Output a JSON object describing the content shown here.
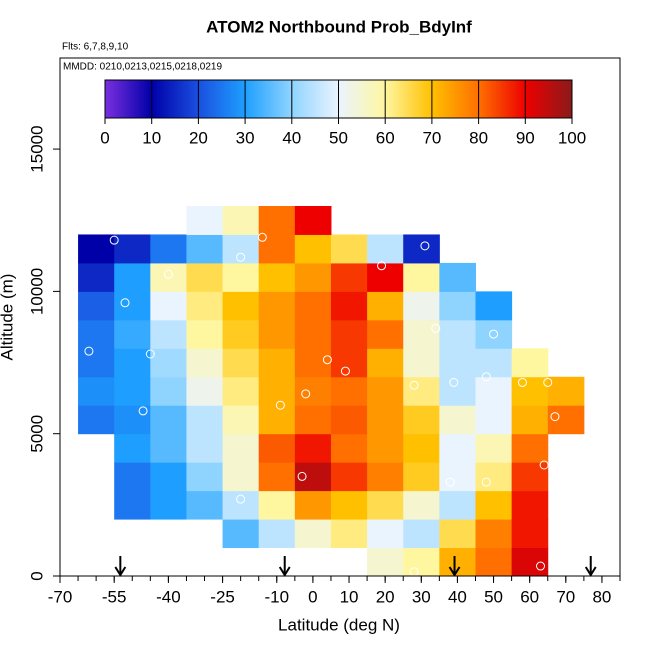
{
  "chart_data": {
    "type": "heatmap",
    "title": "ATOM2 Northbound Prob_BdyInf",
    "annotations": [
      "Flts: 6,7,8,9,10",
      "MMDD: 0210,0213,0215,0218,0219"
    ],
    "x_label": "Latitude (deg N)",
    "y_label": "Altitude (m)",
    "xlim": [
      -70,
      85
    ],
    "ylim": [
      0,
      18200
    ],
    "xticks": [
      -70,
      -55,
      -40,
      -25,
      -10,
      0,
      10,
      20,
      30,
      40,
      50,
      60,
      70,
      80
    ],
    "yticks": [
      0,
      5000,
      10000,
      15000
    ],
    "x": [
      -60,
      -50,
      -40,
      -30,
      -20,
      -10,
      0,
      10,
      20,
      30,
      40,
      50,
      60,
      70
    ],
    "y": [
      500,
      1500,
      2500,
      3500,
      4500,
      5500,
      6500,
      7500,
      8500,
      9500,
      10500,
      11500,
      12500
    ],
    "z": [
      [
        null,
        null,
        null,
        null,
        null,
        null,
        null,
        null,
        55,
        60,
        72,
        80,
        92,
        null
      ],
      [
        null,
        null,
        null,
        null,
        35,
        45,
        55,
        62,
        50,
        45,
        65,
        78,
        88,
        null
      ],
      [
        null,
        25,
        30,
        35,
        45,
        60,
        75,
        70,
        65,
        55,
        45,
        70,
        88,
        null
      ],
      [
        null,
        25,
        30,
        40,
        55,
        80,
        95,
        85,
        78,
        68,
        50,
        62,
        85,
        null
      ],
      [
        null,
        30,
        35,
        45,
        55,
        82,
        88,
        80,
        75,
        70,
        50,
        58,
        80,
        null
      ],
      [
        25,
        28,
        35,
        45,
        58,
        72,
        80,
        82,
        75,
        68,
        55,
        50,
        72,
        80
      ],
      [
        28,
        30,
        40,
        52,
        62,
        72,
        78,
        80,
        75,
        62,
        45,
        50,
        70,
        72
      ],
      [
        25,
        30,
        42,
        55,
        65,
        72,
        80,
        85,
        72,
        55,
        45,
        45,
        60,
        null
      ],
      [
        25,
        32,
        45,
        60,
        68,
        75,
        80,
        85,
        80,
        55,
        45,
        40,
        null,
        null
      ],
      [
        22,
        30,
        50,
        62,
        70,
        75,
        80,
        88,
        72,
        52,
        40,
        30,
        null,
        null
      ],
      [
        15,
        30,
        58,
        65,
        60,
        70,
        75,
        85,
        90,
        60,
        35,
        null,
        null,
        null
      ],
      [
        10,
        15,
        25,
        35,
        45,
        80,
        70,
        65,
        45,
        15,
        null,
        null,
        null,
        null
      ],
      [
        null,
        null,
        null,
        50,
        58,
        80,
        90,
        null,
        null,
        null,
        null,
        null,
        null,
        null
      ]
    ],
    "colorbar_ticks": [
      0,
      10,
      20,
      30,
      40,
      50,
      60,
      70,
      80,
      90,
      100
    ],
    "colorscale": [
      {
        "value": 0,
        "color": "#7b2fe0"
      },
      {
        "value": 10,
        "color": "#0000a8"
      },
      {
        "value": 20,
        "color": "#1a4fe0"
      },
      {
        "value": 30,
        "color": "#1e9fff"
      },
      {
        "value": 40,
        "color": "#8fd4ff"
      },
      {
        "value": 50,
        "color": "#eaf4ff"
      },
      {
        "value": 60,
        "color": "#fff6a0"
      },
      {
        "value": 70,
        "color": "#ffc000"
      },
      {
        "value": 80,
        "color": "#ff7000"
      },
      {
        "value": 90,
        "color": "#ee0000"
      },
      {
        "value": 100,
        "color": "#8b1a1a"
      }
    ],
    "arrows": [
      -53.3,
      -7.8,
      39.2,
      76.9
    ],
    "points": {
      "x": [
        -55,
        -68,
        -52,
        -62,
        -45,
        -47,
        -20,
        -14,
        -40,
        4,
        9,
        -9,
        -2,
        19,
        28,
        34,
        31,
        39,
        48,
        50,
        58,
        65,
        67,
        64,
        48,
        38,
        -3,
        -20,
        28,
        63
      ],
      "y": [
        11800,
        10600,
        9600,
        7900,
        7800,
        5800,
        11200,
        11900,
        10600,
        7600,
        7200,
        6000,
        6400,
        10900,
        6700,
        8700,
        11600,
        6800,
        7000,
        8500,
        6800,
        6800,
        5600,
        3900,
        3300,
        3300,
        3500,
        2700,
        150,
        350
      ]
    }
  }
}
